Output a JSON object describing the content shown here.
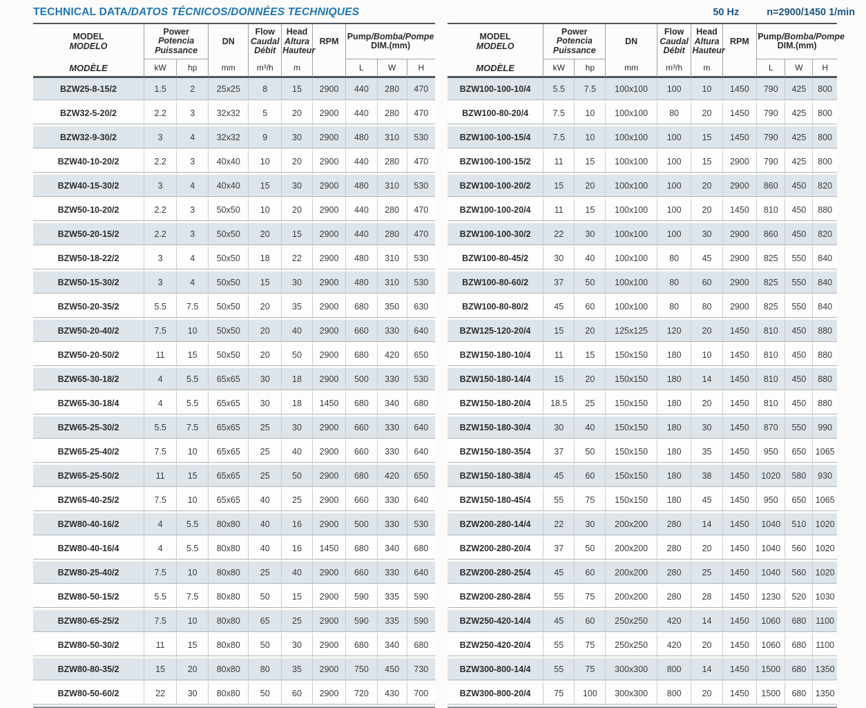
{
  "page": {
    "title_main": "TECHNICAL DATA",
    "title_rest": "/DATOS TÉCNICOS/DONNÉES TECHNIQUES",
    "frequency": "50 Hz",
    "speed": "n=2900/1450 1/min"
  },
  "colors": {
    "title_blue": "#1e76b4",
    "spec_blue": "#1d547f",
    "stripe_row": "#dde4ea",
    "white_row": "#fdfdfc",
    "border_dark": "#4e5358",
    "row_line": "#aeb5bb"
  },
  "columns": {
    "model": [
      "MODEL",
      "MODELO",
      "MODÈLE"
    ],
    "power": [
      "Power",
      "Potencia",
      "Puissance"
    ],
    "dn": "DN",
    "flow": [
      "Flow",
      "Caudal",
      "Débit"
    ],
    "head": [
      "Head",
      "Altura",
      "Hauteur"
    ],
    "rpm": "RPM",
    "dim_title_main": "Pump",
    "dim_title_rest": "/Bomba/Pompe",
    "dim_sub": "DIM.(mm)",
    "units": {
      "kw": "kW",
      "hp": "hp",
      "dn": "mm",
      "flow": "m³/h",
      "head": "m",
      "rpm": "",
      "l": "L",
      "w": "W",
      "h": "H"
    }
  },
  "left_table": {
    "rows": [
      [
        "BZW25-8-15/2",
        "1.5",
        "2",
        "25x25",
        "8",
        "15",
        "2900",
        "440",
        "280",
        "470"
      ],
      [
        "BZW32-5-20/2",
        "2.2",
        "3",
        "32x32",
        "5",
        "20",
        "2900",
        "440",
        "280",
        "470"
      ],
      [
        "BZW32-9-30/2",
        "3",
        "4",
        "32x32",
        "9",
        "30",
        "2900",
        "480",
        "310",
        "530"
      ],
      [
        "BZW40-10-20/2",
        "2.2",
        "3",
        "40x40",
        "10",
        "20",
        "2900",
        "440",
        "280",
        "470"
      ],
      [
        "BZW40-15-30/2",
        "3",
        "4",
        "40x40",
        "15",
        "30",
        "2900",
        "480",
        "310",
        "530"
      ],
      [
        "BZW50-10-20/2",
        "2.2",
        "3",
        "50x50",
        "10",
        "20",
        "2900",
        "440",
        "280",
        "470"
      ],
      [
        "BZW50-20-15/2",
        "2.2",
        "3",
        "50x50",
        "20",
        "15",
        "2900",
        "440",
        "280",
        "470"
      ],
      [
        "BZW50-18-22/2",
        "3",
        "4",
        "50x50",
        "18",
        "22",
        "2900",
        "480",
        "310",
        "530"
      ],
      [
        "BZW50-15-30/2",
        "3",
        "4",
        "50x50",
        "15",
        "30",
        "2900",
        "480",
        "310",
        "530"
      ],
      [
        "BZW50-20-35/2",
        "5.5",
        "7.5",
        "50x50",
        "20",
        "35",
        "2900",
        "680",
        "350",
        "630"
      ],
      [
        "BZW50-20-40/2",
        "7.5",
        "10",
        "50x50",
        "20",
        "40",
        "2900",
        "660",
        "330",
        "640"
      ],
      [
        "BZW50-20-50/2",
        "11",
        "15",
        "50x50",
        "20",
        "50",
        "2900",
        "680",
        "420",
        "650"
      ],
      [
        "BZW65-30-18/2",
        "4",
        "5.5",
        "65x65",
        "30",
        "18",
        "2900",
        "500",
        "330",
        "530"
      ],
      [
        "BZW65-30-18/4",
        "4",
        "5.5",
        "65x65",
        "30",
        "18",
        "1450",
        "680",
        "340",
        "680"
      ],
      [
        "BZW65-25-30/2",
        "5.5",
        "7.5",
        "65x65",
        "25",
        "30",
        "2900",
        "660",
        "330",
        "640"
      ],
      [
        "BZW65-25-40/2",
        "7.5",
        "10",
        "65x65",
        "25",
        "40",
        "2900",
        "660",
        "330",
        "640"
      ],
      [
        "BZW65-25-50/2",
        "11",
        "15",
        "65x65",
        "25",
        "50",
        "2900",
        "680",
        "420",
        "650"
      ],
      [
        "BZW65-40-25/2",
        "7.5",
        "10",
        "65x65",
        "40",
        "25",
        "2900",
        "660",
        "330",
        "640"
      ],
      [
        "BZW80-40-16/2",
        "4",
        "5.5",
        "80x80",
        "40",
        "16",
        "2900",
        "500",
        "330",
        "530"
      ],
      [
        "BZW80-40-16/4",
        "4",
        "5.5",
        "80x80",
        "40",
        "16",
        "1450",
        "680",
        "340",
        "680"
      ],
      [
        "BZW80-25-40/2",
        "7.5",
        "10",
        "80x80",
        "25",
        "40",
        "2900",
        "660",
        "330",
        "640"
      ],
      [
        "BZW80-50-15/2",
        "5.5",
        "7.5",
        "80x80",
        "50",
        "15",
        "2900",
        "590",
        "335",
        "590"
      ],
      [
        "BZW80-65-25/2",
        "7.5",
        "10",
        "80x80",
        "65",
        "25",
        "2900",
        "590",
        "335",
        "590"
      ],
      [
        "BZW80-50-30/2",
        "11",
        "15",
        "80x80",
        "50",
        "30",
        "2900",
        "680",
        "340",
        "680"
      ],
      [
        "BZW80-80-35/2",
        "15",
        "20",
        "80x80",
        "80",
        "35",
        "2900",
        "750",
        "450",
        "730"
      ],
      [
        "BZW80-50-60/2",
        "22",
        "30",
        "80x80",
        "50",
        "60",
        "2900",
        "720",
        "430",
        "700"
      ]
    ]
  },
  "right_table": {
    "rows": [
      [
        "BZW100-100-10/4",
        "5.5",
        "7.5",
        "100x100",
        "100",
        "10",
        "1450",
        "790",
        "425",
        "800"
      ],
      [
        "BZW100-80-20/4",
        "7.5",
        "10",
        "100x100",
        "80",
        "20",
        "1450",
        "790",
        "425",
        "800"
      ],
      [
        "BZW100-100-15/4",
        "7.5",
        "10",
        "100x100",
        "100",
        "15",
        "1450",
        "790",
        "425",
        "800"
      ],
      [
        "BZW100-100-15/2",
        "11",
        "15",
        "100x100",
        "100",
        "15",
        "2900",
        "790",
        "425",
        "800"
      ],
      [
        "BZW100-100-20/2",
        "15",
        "20",
        "100x100",
        "100",
        "20",
        "2900",
        "860",
        "450",
        "820"
      ],
      [
        "BZW100-100-20/4",
        "11",
        "15",
        "100x100",
        "100",
        "20",
        "1450",
        "810",
        "450",
        "880"
      ],
      [
        "BZW100-100-30/2",
        "22",
        "30",
        "100x100",
        "100",
        "30",
        "2900",
        "860",
        "450",
        "820"
      ],
      [
        "BZW100-80-45/2",
        "30",
        "40",
        "100x100",
        "80",
        "45",
        "2900",
        "825",
        "550",
        "840"
      ],
      [
        "BZW100-80-60/2",
        "37",
        "50",
        "100x100",
        "80",
        "60",
        "2900",
        "825",
        "550",
        "840"
      ],
      [
        "BZW100-80-80/2",
        "45",
        "60",
        "100x100",
        "80",
        "80",
        "2900",
        "825",
        "550",
        "840"
      ],
      [
        "BZW125-120-20/4",
        "15",
        "20",
        "125x125",
        "120",
        "20",
        "1450",
        "810",
        "450",
        "880"
      ],
      [
        "BZW150-180-10/4",
        "11",
        "15",
        "150x150",
        "180",
        "10",
        "1450",
        "810",
        "450",
        "880"
      ],
      [
        "BZW150-180-14/4",
        "15",
        "20",
        "150x150",
        "180",
        "14",
        "1450",
        "810",
        "450",
        "880"
      ],
      [
        "BZW150-180-20/4",
        "18.5",
        "25",
        "150x150",
        "180",
        "20",
        "1450",
        "810",
        "450",
        "880"
      ],
      [
        "BZW150-180-30/4",
        "30",
        "40",
        "150x150",
        "180",
        "30",
        "1450",
        "870",
        "550",
        "990"
      ],
      [
        "BZW150-180-35/4",
        "37",
        "50",
        "150x150",
        "180",
        "35",
        "1450",
        "950",
        "650",
        "1065"
      ],
      [
        "BZW150-180-38/4",
        "45",
        "60",
        "150x150",
        "180",
        "38",
        "1450",
        "1020",
        "580",
        "930"
      ],
      [
        "BZW150-180-45/4",
        "55",
        "75",
        "150x150",
        "180",
        "45",
        "1450",
        "950",
        "650",
        "1065"
      ],
      [
        "BZW200-280-14/4",
        "22",
        "30",
        "200x200",
        "280",
        "14",
        "1450",
        "1040",
        "510",
        "1020"
      ],
      [
        "BZW200-280-20/4",
        "37",
        "50",
        "200x200",
        "280",
        "20",
        "1450",
        "1040",
        "560",
        "1020"
      ],
      [
        "BZW200-280-25/4",
        "45",
        "60",
        "200x200",
        "280",
        "25",
        "1450",
        "1040",
        "560",
        "1020"
      ],
      [
        "BZW200-280-28/4",
        "55",
        "75",
        "200x200",
        "280",
        "28",
        "1450",
        "1230",
        "520",
        "1030"
      ],
      [
        "BZW250-420-14/4",
        "45",
        "60",
        "250x250",
        "420",
        "14",
        "1450",
        "1060",
        "680",
        "1100"
      ],
      [
        "BZW250-420-20/4",
        "55",
        "75",
        "250x250",
        "420",
        "20",
        "1450",
        "1060",
        "680",
        "1100"
      ],
      [
        "BZW300-800-14/4",
        "55",
        "75",
        "300x300",
        "800",
        "14",
        "1450",
        "1500",
        "680",
        "1350"
      ],
      [
        "BZW300-800-20/4",
        "75",
        "100",
        "300x300",
        "800",
        "20",
        "1450",
        "1500",
        "680",
        "1350"
      ]
    ]
  }
}
